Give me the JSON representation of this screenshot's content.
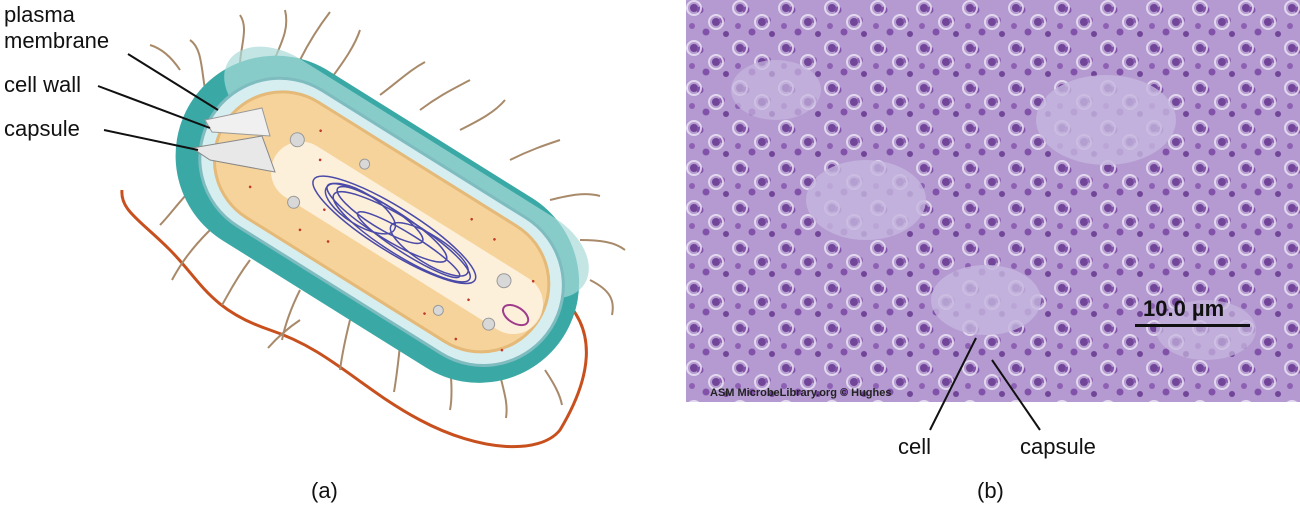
{
  "panel_a": {
    "labels": {
      "plasma_membrane": "plasma\nmembrane",
      "cell_wall": "cell wall",
      "capsule": "capsule"
    },
    "caption": "(a)"
  },
  "panel_b": {
    "scale_bar": "10.0 µm",
    "credit": "ASM MicrobeLibrary.org © Hughes",
    "labels": {
      "cell": "cell",
      "capsule": "capsule"
    },
    "caption": "(b)"
  },
  "colors": {
    "capsule_teal": "#3aa9a6",
    "capsule_light": "#a9dcda",
    "cytoplasm": "#f6d39a",
    "nucleoid": "#4a4aa8",
    "stain_purple": "#b49ad0",
    "cell_dark": "#6a3b92"
  }
}
